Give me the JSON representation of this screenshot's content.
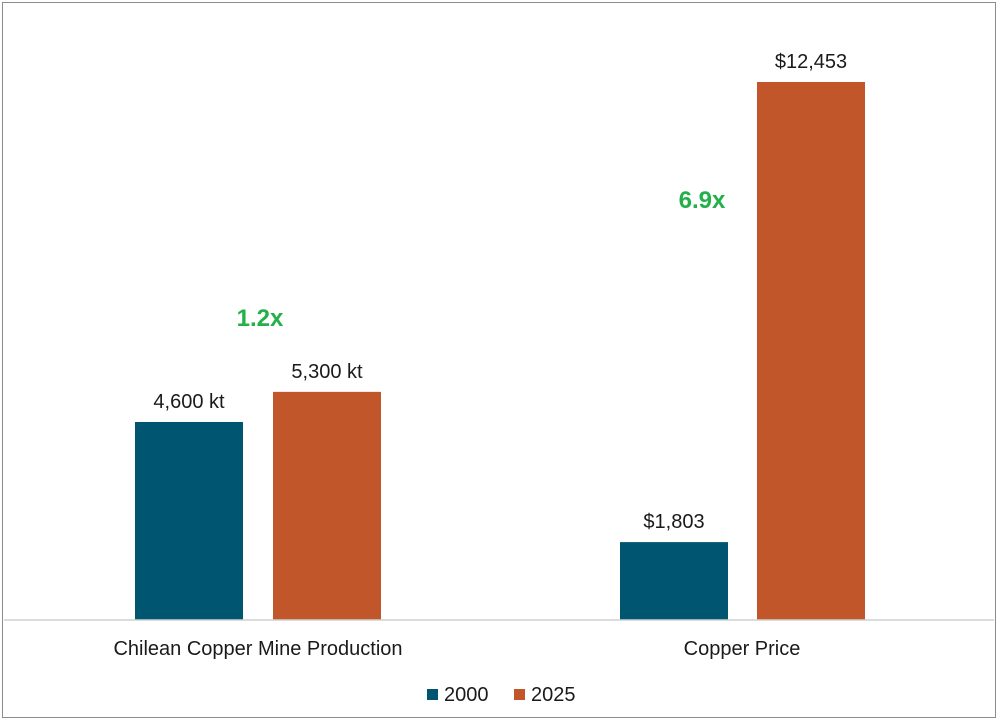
{
  "chart_data": {
    "type": "bar",
    "categories": [
      "Chilean Copper Mine Production",
      "Copper Price"
    ],
    "series": [
      {
        "name": "2000",
        "color": "#005670",
        "values": [
          4600,
          1803
        ],
        "labels": [
          "4,600 kt",
          "$1,803"
        ]
      },
      {
        "name": "2025",
        "color": "#c0562a",
        "values": [
          5300,
          12453
        ],
        "labels": [
          "5,300 kt",
          "$12,453"
        ]
      }
    ],
    "annotations": [
      {
        "category": "Chilean Copper Mine Production",
        "text": "1.2x",
        "color": "#22b04a"
      },
      {
        "category": "Copper Price",
        "text": "6.9x",
        "color": "#22b04a"
      }
    ],
    "note": "Each category uses its own scale (kt vs $); values shown as data labels.",
    "legend": "bottom-center",
    "grid": false
  }
}
